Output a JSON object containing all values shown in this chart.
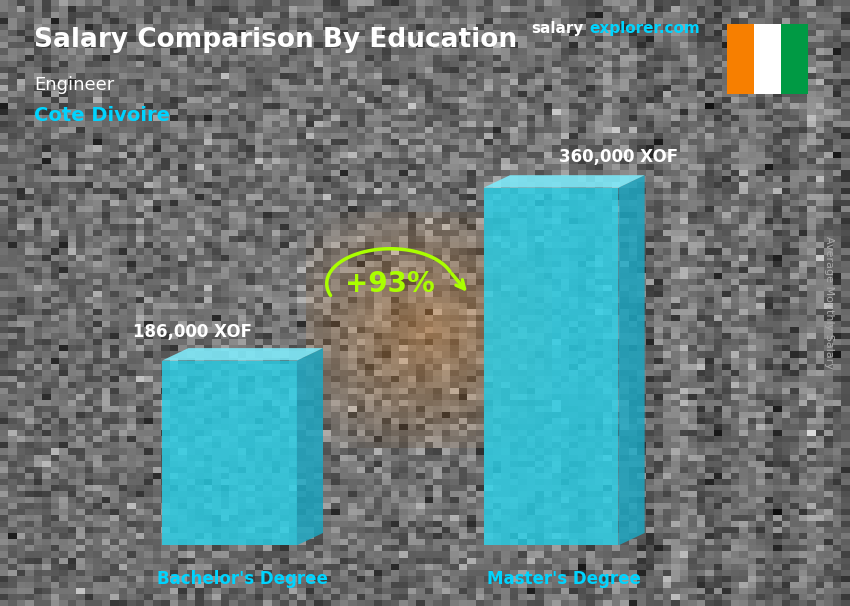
{
  "title": "Salary Comparison By Education",
  "subtitle_role": "Engineer",
  "subtitle_country": "Cote Divoire",
  "site_salary": "salary",
  "site_explorer": "explorer.com",
  "ylabel": "Average Monthly Salary",
  "categories": [
    "Bachelor's Degree",
    "Master's Degree"
  ],
  "values": [
    186000,
    360000
  ],
  "value_labels": [
    "186,000 XOF",
    "360,000 XOF"
  ],
  "pct_change": "+93%",
  "bar_color_face": "#29d0e8",
  "bar_color_side": "#1aa8c4",
  "bar_color_top": "#7de8f8",
  "bg_color": "#5a6068",
  "title_color": "#ffffff",
  "role_color": "#ffffff",
  "country_color": "#00d4ff",
  "value_color": "#ffffff",
  "cat_color": "#00d4ff",
  "pct_color": "#aaff00",
  "site_salary_color": "#ffffff",
  "site_explorer_color": "#00d4ff",
  "ylabel_color": "#aaaaaa",
  "flag_orange": "#F77F00",
  "flag_white": "#FFFFFF",
  "flag_green": "#009A44"
}
